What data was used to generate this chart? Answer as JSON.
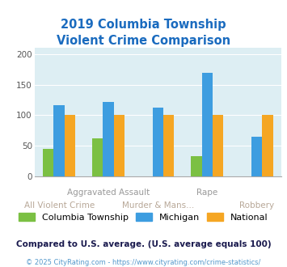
{
  "title": "2019 Columbia Township\nViolent Crime Comparison",
  "categories": [
    "All Violent Crime",
    "Aggravated Assault",
    "Murder & Mans...",
    "Rape",
    "Robbery"
  ],
  "columbia": [
    45,
    62,
    null,
    33,
    null
  ],
  "michigan": [
    116,
    122,
    112,
    170,
    65
  ],
  "national": [
    101,
    101,
    101,
    101,
    101
  ],
  "colors": {
    "Columbia Township": "#7bc043",
    "Michigan": "#3d9de0",
    "National": "#f5a623"
  },
  "ylim": [
    0,
    210
  ],
  "yticks": [
    0,
    50,
    100,
    150,
    200
  ],
  "bar_width": 0.22,
  "plot_bg": "#ddeef3",
  "title_color": "#1a6bbf",
  "title_fontsize": 10.5,
  "legend_fontsize": 8.0,
  "tick_fontsize": 7.5,
  "label_fontsize": 7.5,
  "upper_labels": {
    "1": "Aggravated Assault",
    "3": "Rape"
  },
  "lower_labels": {
    "0": "All Violent Crime",
    "2": "Murder & Mans...",
    "4": "Robbery"
  },
  "label_color_upper": "#999999",
  "label_color_lower": "#b8a898",
  "footer_text": "Compared to U.S. average. (U.S. average equals 100)",
  "copyright_text": "© 2025 CityRating.com - https://www.cityrating.com/crime-statistics/",
  "footer_color": "#1a1a4e",
  "copyright_color": "#5599cc"
}
